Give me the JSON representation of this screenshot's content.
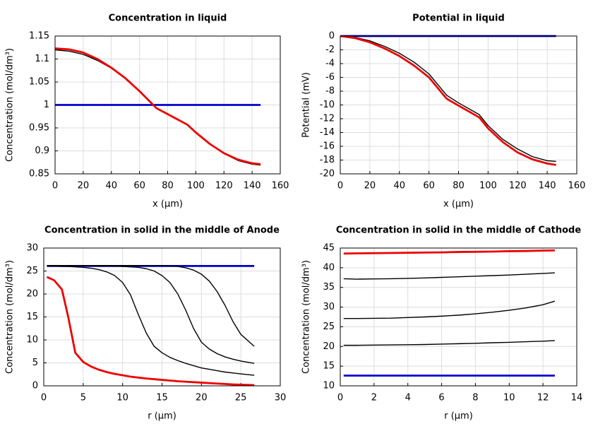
{
  "chart_data": [
    {
      "type": "line",
      "title": "Concentration in liquid",
      "xlabel": "x (µm)",
      "ylabel": "Concentration (mol/dm³)",
      "x": [
        0,
        10,
        20,
        30,
        40,
        50,
        60,
        72,
        80,
        94,
        100,
        110,
        120,
        130,
        140,
        146
      ],
      "series": [
        {
          "color": "#0000cc",
          "values": [
            1,
            1,
            1,
            1,
            1,
            1,
            1,
            1,
            1,
            1,
            1,
            1,
            1,
            1,
            1,
            1
          ]
        },
        {
          "color": "#000000",
          "values": [
            1.12,
            1.117,
            1.11,
            1.097,
            1.08,
            1.057,
            1.03,
            0.993,
            0.98,
            0.957,
            0.94,
            0.915,
            0.894,
            0.879,
            0.871,
            0.869
          ]
        },
        {
          "color": "#ee0000",
          "values": [
            1.123,
            1.121,
            1.114,
            1.1,
            1.081,
            1.058,
            1.03,
            0.993,
            0.98,
            0.957,
            0.94,
            0.915,
            0.895,
            0.881,
            0.873,
            0.871
          ]
        }
      ],
      "xlim": [
        0,
        160
      ],
      "xticks": [
        0,
        20,
        40,
        60,
        80,
        100,
        120,
        140,
        160
      ],
      "ylim": [
        0.85,
        1.15
      ],
      "yticks": [
        0.85,
        0.9,
        0.95,
        1,
        1.05,
        1.1,
        1.15
      ],
      "grid": true
    },
    {
      "type": "line",
      "title": "Potential in liquid",
      "xlabel": "x (µm)",
      "ylabel": "Potential (mV)",
      "x": [
        0,
        10,
        20,
        30,
        40,
        50,
        60,
        72,
        80,
        94,
        100,
        110,
        120,
        130,
        140,
        146
      ],
      "series": [
        {
          "color": "#0000cc",
          "values": [
            0,
            0,
            0,
            0,
            0,
            0,
            0,
            0,
            0,
            0,
            0,
            0,
            0,
            0,
            0,
            0
          ]
        },
        {
          "color": "#000000",
          "values": [
            0,
            -0.2,
            -0.7,
            -1.5,
            -2.5,
            -3.8,
            -5.5,
            -8.6,
            -9.7,
            -11.4,
            -13.0,
            -15.0,
            -16.4,
            -17.5,
            -18.1,
            -18.2
          ]
        },
        {
          "color": "#ee0000",
          "values": [
            0,
            -0.3,
            -0.9,
            -1.8,
            -2.9,
            -4.3,
            -6.0,
            -9.1,
            -10.1,
            -11.8,
            -13.4,
            -15.4,
            -16.9,
            -17.9,
            -18.5,
            -18.7
          ]
        }
      ],
      "xlim": [
        0,
        160
      ],
      "xticks": [
        0,
        20,
        40,
        60,
        80,
        100,
        120,
        140,
        160
      ],
      "ylim": [
        -20,
        0
      ],
      "yticks": [
        -20,
        -18,
        -16,
        -14,
        -12,
        -10,
        -8,
        -6,
        -4,
        -2,
        0
      ],
      "grid": true
    },
    {
      "type": "line",
      "title": "Concentration in solid in the middle of Anode",
      "xlabel": "r (µm)",
      "ylabel": "Concentration (mol/dm³)",
      "x": [
        0.4,
        1.3,
        2.3,
        3.1,
        4,
        5,
        6,
        7,
        8,
        9,
        10,
        11,
        12,
        13,
        14,
        15,
        16,
        17,
        18,
        19,
        20,
        21,
        22,
        23,
        24,
        25,
        26.7
      ],
      "series": [
        {
          "color": "#0000cc",
          "values": [
            26.1,
            26.1,
            26.1,
            26.1,
            26.1,
            26.1,
            26.1,
            26.1,
            26.1,
            26.1,
            26.1,
            26.1,
            26.1,
            26.1,
            26.1,
            26.1,
            26.1,
            26.1,
            26.1,
            26.1,
            26.1,
            26.1,
            26.1,
            26.1,
            26.1,
            26.1,
            26.1
          ]
        },
        {
          "color": "#000000",
          "values": [
            26.1,
            26.1,
            26.0,
            26.0,
            25.9,
            25.8,
            25.6,
            25.3,
            24.8,
            24.0,
            22.5,
            19.8,
            15.5,
            11.5,
            8.6,
            7.2,
            6.2,
            5.5,
            4.9,
            4.4,
            3.9,
            3.6,
            3.3,
            3.0,
            2.8,
            2.6,
            2.3
          ]
        },
        {
          "color": "#000000",
          "values": [
            26.2,
            26.2,
            26.2,
            26.2,
            26.2,
            26.2,
            26.2,
            26.1,
            26.1,
            26.1,
            26.0,
            25.9,
            25.8,
            25.5,
            25.0,
            24.0,
            22.5,
            20.0,
            16.5,
            12.5,
            9.5,
            8.0,
            7.0,
            6.3,
            5.8,
            5.4,
            4.9
          ]
        },
        {
          "color": "#000000",
          "values": [
            26.2,
            26.2,
            26.2,
            26.2,
            26.2,
            26.2,
            26.2,
            26.2,
            26.2,
            26.2,
            26.2,
            26.2,
            26.2,
            26.2,
            26.2,
            26.2,
            26.1,
            26.0,
            25.7,
            25.2,
            24.3,
            22.8,
            20.5,
            17.5,
            14.0,
            11.2,
            8.6
          ]
        },
        {
          "color": "#ee0000",
          "values": [
            23.7,
            23.0,
            21.0,
            15.0,
            7.2,
            5.2,
            4.2,
            3.5,
            3.0,
            2.6,
            2.3,
            2.0,
            1.8,
            1.6,
            1.45,
            1.3,
            1.15,
            1.0,
            0.9,
            0.8,
            0.7,
            0.6,
            0.5,
            0.4,
            0.3,
            0.25,
            0.15
          ]
        }
      ],
      "xlim": [
        0,
        30
      ],
      "xticks": [
        0,
        5,
        10,
        15,
        20,
        25,
        30
      ],
      "ylim": [
        0,
        30
      ],
      "yticks": [
        0,
        5,
        10,
        15,
        20,
        25,
        30
      ],
      "grid": true
    },
    {
      "type": "line",
      "title": "Concentration in solid in the middle of Cathode",
      "xlabel": "r (µm)",
      "ylabel": "Concentration (mol/dm³)",
      "x": [
        0.2,
        1,
        2,
        3,
        4,
        5,
        6,
        7,
        8,
        9,
        10,
        11,
        12,
        12.7
      ],
      "series": [
        {
          "color": "#0000cc",
          "values": [
            12.6,
            12.6,
            12.6,
            12.6,
            12.6,
            12.6,
            12.6,
            12.6,
            12.6,
            12.6,
            12.6,
            12.6,
            12.6,
            12.6
          ]
        },
        {
          "color": "#000000",
          "values": [
            20.3,
            20.3,
            20.35,
            20.4,
            20.45,
            20.5,
            20.6,
            20.7,
            20.8,
            20.95,
            21.05,
            21.2,
            21.35,
            21.5
          ]
        },
        {
          "color": "#000000",
          "values": [
            27.1,
            27.1,
            27.15,
            27.2,
            27.35,
            27.5,
            27.7,
            27.95,
            28.3,
            28.7,
            29.2,
            29.8,
            30.6,
            31.5
          ]
        },
        {
          "color": "#000000",
          "values": [
            37.2,
            37.1,
            37.15,
            37.2,
            37.3,
            37.4,
            37.55,
            37.7,
            37.85,
            38.0,
            38.15,
            38.35,
            38.55,
            38.7
          ]
        },
        {
          "color": "#ee0000",
          "values": [
            43.6,
            43.65,
            43.7,
            43.75,
            43.8,
            43.85,
            43.9,
            44.0,
            44.05,
            44.1,
            44.2,
            44.25,
            44.35,
            44.4
          ]
        }
      ],
      "xlim": [
        0,
        14
      ],
      "xticks": [
        0,
        2,
        4,
        6,
        8,
        10,
        12,
        14
      ],
      "ylim": [
        10,
        45
      ],
      "yticks": [
        10,
        15,
        20,
        25,
        30,
        35,
        40,
        45
      ],
      "grid": true
    }
  ]
}
